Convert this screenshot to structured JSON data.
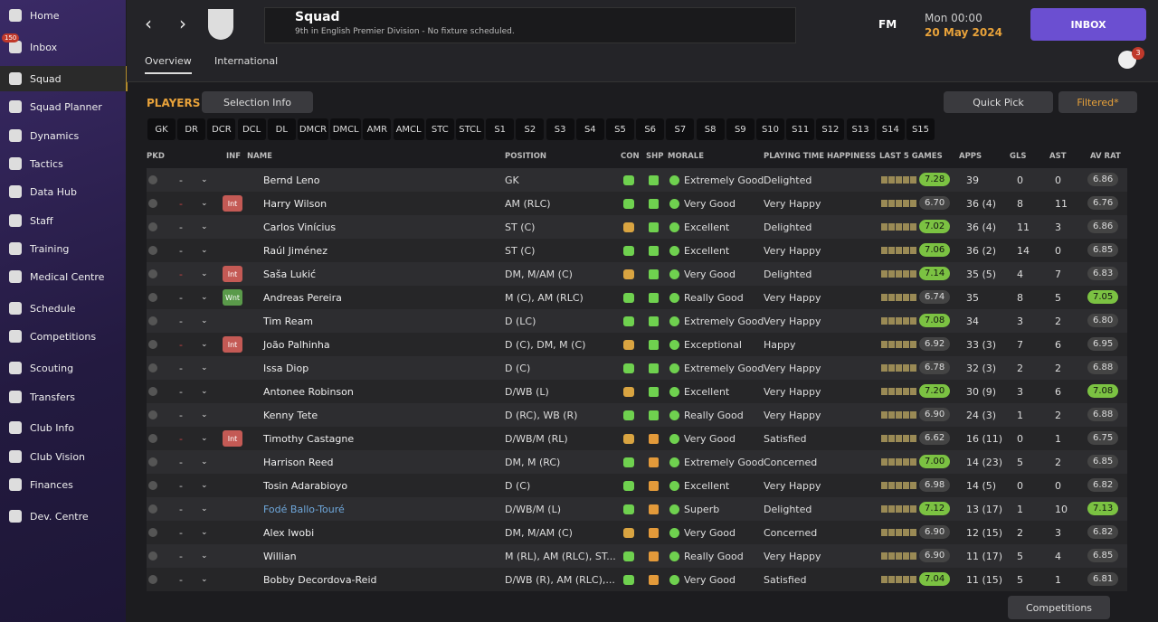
{
  "sidebar": {
    "items": [
      "Home",
      "Inbox",
      "Squad",
      "Squad Planner",
      "Dynamics",
      "Tactics",
      "Data Hub",
      "Staff",
      "Training",
      "Medical Centre",
      "Schedule",
      "Competitions",
      "Scouting",
      "Transfers",
      "Club Info",
      "Club Vision",
      "Finances",
      "Dev. Centre"
    ],
    "inbox_badge": "150"
  },
  "header": {
    "title": "Squad",
    "subtitle": "9th in English Premier Division - No fixture scheduled.",
    "tabs": [
      "Overview",
      "International"
    ],
    "logo": "FM",
    "time": "Mon 00:00",
    "date": "20 May 2024",
    "inbox": "INBOX",
    "badge": "3"
  },
  "toolbar": {
    "label": "PLAYERS",
    "selection": "Selection Info",
    "quick_pick": "Quick Pick",
    "filter": "Filtered*"
  },
  "positions": [
    "GK",
    "DR",
    "DCR",
    "DCL",
    "DL",
    "DMCR",
    "DMCL",
    "AMR",
    "AMCL",
    "STC",
    "STCL",
    "S1",
    "S2",
    "S3",
    "S4",
    "S5",
    "S6",
    "S7",
    "S8",
    "S9",
    "S10",
    "S11",
    "S12",
    "S13",
    "S14",
    "S15"
  ],
  "table": {
    "columns": [
      "PKD",
      "INF",
      "NAME",
      "POSITION",
      "CON",
      "SHP",
      "MORALE",
      "PLAYING TIME HAPPINESS",
      "LAST 5 GAMES",
      "APPS",
      "GLS",
      "AST",
      "AV RAT"
    ],
    "rows": [
      [
        "-",
        null,
        "Bernd Leno",
        "GK",
        "Extremely Good",
        "Delighted",
        "7.28",
        "39",
        "0",
        "0",
        "6.86"
      ],
      [
        "-",
        "Int",
        "Harry Wilson",
        "AM (RLC)",
        "Very Good",
        "Very Happy",
        "6.70",
        "36 (4)",
        "8",
        "11",
        "6.76"
      ],
      [
        "-",
        null,
        "Carlos Vinícius",
        "ST (C)",
        "Excellent",
        "Delighted",
        "7.02",
        "36 (4)",
        "11",
        "3",
        "6.86"
      ],
      [
        "-",
        null,
        "Raúl Jiménez",
        "ST (C)",
        "Excellent",
        "Very Happy",
        "7.06",
        "36 (2)",
        "14",
        "0",
        "6.85"
      ],
      [
        "-",
        "Int",
        "Saša Lukić",
        "DM, M/AM (C)",
        "Very Good",
        "Delighted",
        "7.14",
        "35 (5)",
        "4",
        "7",
        "6.83"
      ],
      [
        "-",
        "Wnt",
        "Andreas Pereira",
        "M (C), AM (RLC)",
        "Really Good",
        "Very Happy",
        "6.74",
        "35",
        "8",
        "5",
        "7.05"
      ],
      [
        "-",
        null,
        "Tim Ream",
        "D (LC)",
        "Extremely Good",
        "Very Happy",
        "7.08",
        "34",
        "3",
        "2",
        "6.80"
      ],
      [
        "-",
        "Int",
        "João Palhinha",
        "D (C), DM, M (C)",
        "Exceptional",
        "Happy",
        "6.92",
        "33 (3)",
        "7",
        "6",
        "6.95"
      ],
      [
        "-",
        null,
        "Issa Diop",
        "D (C)",
        "Extremely Good",
        "Very Happy",
        "6.78",
        "32 (3)",
        "2",
        "2",
        "6.88"
      ],
      [
        "-",
        null,
        "Antonee Robinson",
        "D/WB (L)",
        "Excellent",
        "Very Happy",
        "7.20",
        "30 (9)",
        "3",
        "6",
        "7.08"
      ],
      [
        "-",
        null,
        "Kenny Tete",
        "D (RC), WB (R)",
        "Really Good",
        "Very Happy",
        "6.90",
        "24 (3)",
        "1",
        "2",
        "6.88"
      ],
      [
        "-",
        "Int",
        "Timothy Castagne",
        "D/WB/M (RL)",
        "Very Good",
        "Satisfied",
        "6.62",
        "16 (11)",
        "0",
        "1",
        "6.75"
      ],
      [
        "-",
        null,
        "Harrison Reed",
        "DM, M (RC)",
        "Extremely Good",
        "Concerned",
        "7.00",
        "14 (23)",
        "5",
        "2",
        "6.85"
      ],
      [
        "-",
        null,
        "Tosin Adarabioyo",
        "D (C)",
        "Excellent",
        "Very Happy",
        "6.98",
        "14 (5)",
        "0",
        "0",
        "6.82"
      ],
      [
        "-",
        null,
        "Fodé Ballo-Touré",
        "D/WB/M (L)",
        "Superb",
        "Delighted",
        "7.12",
        "13 (17)",
        "1",
        "10",
        "7.13"
      ],
      [
        "-",
        null,
        "Alex Iwobi",
        "DM, M/AM (C)",
        "Very Good",
        "Concerned",
        "6.90",
        "12 (15)",
        "2",
        "3",
        "6.82"
      ],
      [
        "-",
        null,
        "Willian",
        "M (RL), AM (RLC), ST...",
        "Really Good",
        "Very Happy",
        "6.90",
        "11 (17)",
        "5",
        "4",
        "6.85"
      ],
      [
        "-",
        null,
        "Bobby Decordova-Reid",
        "D/WB (R), AM (RLC),...",
        "Very Good",
        "Satisfied",
        "7.04",
        "11 (15)",
        "5",
        "1",
        "6.81"
      ]
    ]
  },
  "footer": {
    "button": "Competitions"
  }
}
